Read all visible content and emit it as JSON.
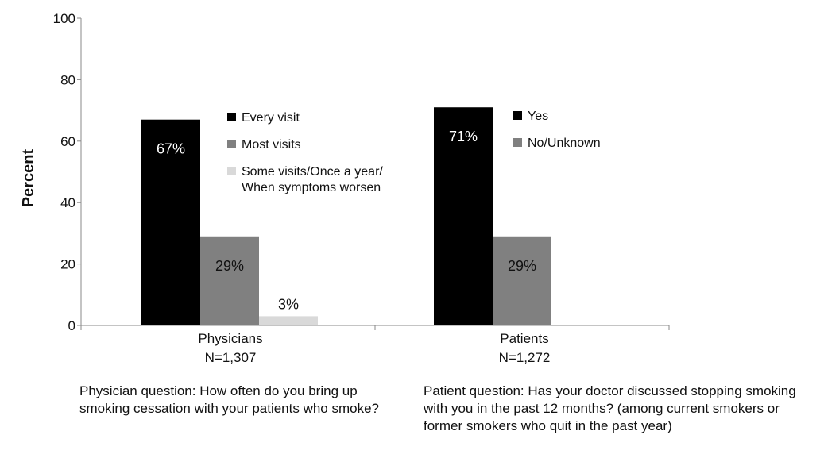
{
  "chart_data": {
    "type": "bar",
    "ylabel": "Percent",
    "ylim": [
      0,
      100
    ],
    "yticks": [
      0,
      20,
      40,
      60,
      80,
      100
    ],
    "grid": false,
    "groups": [
      {
        "name": "Physicians",
        "n_label": "N=1,307",
        "question": "Physician question: How often do you bring up smoking cessation with your patients who smoke?",
        "series": [
          {
            "name": "Every visit",
            "value": 67,
            "label": "67%",
            "color": "#000000"
          },
          {
            "name": "Most visits",
            "value": 29,
            "label": "29%",
            "color": "#808080"
          },
          {
            "name": "Some visits/Once a year/ When symptoms worsen",
            "legend_lines": [
              "Some visits/Once a year/",
              "When symptoms worsen"
            ],
            "value": 3,
            "label": "3%",
            "color": "#d9d9d9"
          }
        ]
      },
      {
        "name": "Patients",
        "n_label": "N=1,272",
        "question": "Patient question: Has your doctor discussed stopping smoking with you in the past 12 months? (among current smokers or former smokers who quit in the past year)",
        "series": [
          {
            "name": "Yes",
            "value": 71,
            "label": "71%",
            "color": "#000000"
          },
          {
            "name": "No/Unknown",
            "value": 29,
            "label": "29%",
            "color": "#808080"
          }
        ]
      }
    ]
  }
}
